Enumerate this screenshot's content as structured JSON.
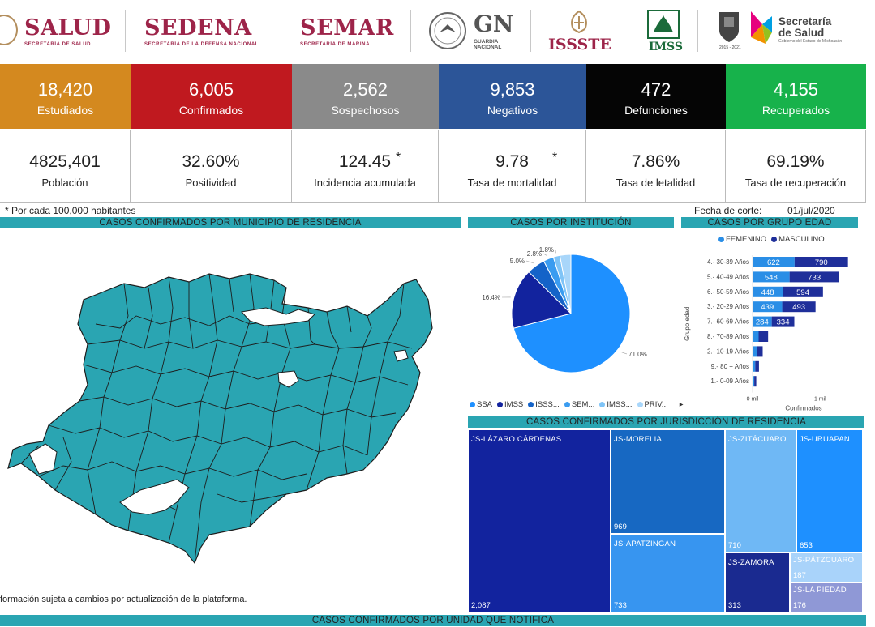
{
  "header": {
    "salud": {
      "title": "SALUD",
      "sub": "SECRETARÍA DE SALUD"
    },
    "sedena": {
      "title": "SEDENA",
      "sub": "SECRETARÍA DE LA DEFENSA NACIONAL"
    },
    "semar": {
      "title": "SEMAR",
      "sub": "SECRETARÍA DE MARINA"
    },
    "gn": {
      "title": "GN",
      "sub1": "GUARDIA",
      "sub2": "NACIONAL"
    },
    "issste": "ISSSTE",
    "imss": "IMSS",
    "mich_years": "2015 - 2021",
    "secretaria": {
      "line1": "Secretaría",
      "line2": "de Salud",
      "sub": "Gobierno del Estado de Michoacán"
    }
  },
  "kpis": [
    {
      "value": "18,420",
      "label": "Estudiados",
      "color": "#d4891f"
    },
    {
      "value": "6,005",
      "label": "Confirmados",
      "color": "#c0191f"
    },
    {
      "value": "2,562",
      "label": "Sospechosos",
      "color": "#8a8a8a"
    },
    {
      "value": "9,853",
      "label": "Negativos",
      "color": "#2c5598"
    },
    {
      "value": "472",
      "label": "Defunciones",
      "color": "#050505"
    },
    {
      "value": "4,155",
      "label": "Recuperados",
      "color": "#17b24b"
    }
  ],
  "stats": [
    {
      "value": "4825,401",
      "label": "Población"
    },
    {
      "value": "32.60%",
      "label": "Positividad"
    },
    {
      "value": "124.45",
      "label": "Incidencia acumulada",
      "star": "*"
    },
    {
      "value": "9.78",
      "label": "Tasa de mortalidad",
      "star": "*"
    },
    {
      "value": "7.86%",
      "label": "Tasa de letalidad"
    },
    {
      "value": "69.19%",
      "label": "Tasa de recuperación"
    }
  ],
  "notes": {
    "footnote": "* Por cada 100,000 habitantes",
    "cutoff_label": "Fecha de corte:",
    "cutoff_date": "01/jul/2020",
    "disclaimer": "formación sujeta a cambios por actualización de la plataforma."
  },
  "sections": {
    "municipio": "CASOS CONFIRMADOS POR MUNICIPIO DE RESIDENCIA",
    "institucion": "CASOS POR INSTITUCIÓN",
    "edad": "CASOS POR GRUPO EDAD",
    "jurisdiccion": "CASOS CONFIRMADOS POR JURISDICCIÓN DE RESIDENCIA",
    "unidad": "CASOS CONFIRMADOS POR UNIDAD QUE NOTIFICA"
  },
  "map": {
    "fill": "#2aa5b2",
    "stroke": "#1d1d1d"
  },
  "chart_data": [
    {
      "type": "pie",
      "title": "CASOS POR INSTITUCIÓN",
      "slices": [
        {
          "name": "SSA",
          "value": 71.0,
          "label": "71.0%",
          "color": "#1e90ff"
        },
        {
          "name": "IMSS",
          "value": 16.4,
          "label": "16.4%",
          "color": "#12239e"
        },
        {
          "name": "ISSS...",
          "value": 5.0,
          "label": "5.0%",
          "color": "#1463c8"
        },
        {
          "name": "SEM...",
          "value": 2.8,
          "label": "2.8%",
          "color": "#3a9cf0"
        },
        {
          "name": "IMSS...",
          "value": 1.8,
          "label": "1.8%",
          "color": "#7fc4f7"
        },
        {
          "name": "PRIV...",
          "value": 3.0,
          "label": "",
          "color": "#a8d6fa"
        }
      ],
      "legend_more": "▸"
    },
    {
      "type": "bar",
      "title": "CASOS POR GRUPO EDAD",
      "xlabel": "Confirmados",
      "ylabel": "Grupo edad",
      "xticks": [
        "0 mil",
        "1 mil"
      ],
      "legend": [
        {
          "name": "FEMENINO",
          "color": "#2a8ee6"
        },
        {
          "name": "MASCULINO",
          "color": "#1f2f9a"
        }
      ],
      "categories": [
        "4.- 30-39 Años",
        "5.- 40-49 Años",
        "6.- 50-59 Años",
        "3.- 20-29 Años",
        "7.- 60-69 Años",
        "8.- 70-89 Años",
        "2.- 10-19 Años",
        "9.- 80 + Años",
        "1.- 0-09 Años"
      ],
      "series": [
        {
          "name": "FEMENINO",
          "values": [
            622,
            548,
            448,
            439,
            284,
            90,
            70,
            40,
            25
          ],
          "labels": [
            "622",
            "548",
            "448",
            "439",
            "284",
            "",
            "",
            "",
            ""
          ]
        },
        {
          "name": "MASCULINO",
          "values": [
            790,
            733,
            594,
            493,
            334,
            140,
            80,
            55,
            30
          ],
          "labels": [
            "790",
            "733",
            "594",
            "493",
            "334",
            "",
            "",
            "",
            ""
          ]
        }
      ],
      "xlim": [
        0,
        1500
      ]
    },
    {
      "type": "treemap",
      "title": "CASOS CONFIRMADOS POR JURISDICCIÓN DE RESIDENCIA",
      "items": [
        {
          "name": "JS-LÁZARO CÁRDENAS",
          "value": "2,087",
          "color": "#12239e"
        },
        {
          "name": "JS-MORELIA",
          "value": "969",
          "color": "#1768c2"
        },
        {
          "name": "JS-APATZINGÁN",
          "value": "733",
          "color": "#3795f0"
        },
        {
          "name": "JS-ZITÁCUARO",
          "value": "710",
          "color": "#6fb8f5"
        },
        {
          "name": "JS-URUAPAN",
          "value": "653",
          "color": "#1e90ff"
        },
        {
          "name": "JS-ZAMORA",
          "value": "313",
          "color": "#1a2a90"
        },
        {
          "name": "JS-PÁTZCUARO",
          "value": "187",
          "color": "#a9d3fa"
        },
        {
          "name": "JS-LA PIEDAD",
          "value": "176",
          "color": "#8f98d6"
        }
      ]
    }
  ]
}
